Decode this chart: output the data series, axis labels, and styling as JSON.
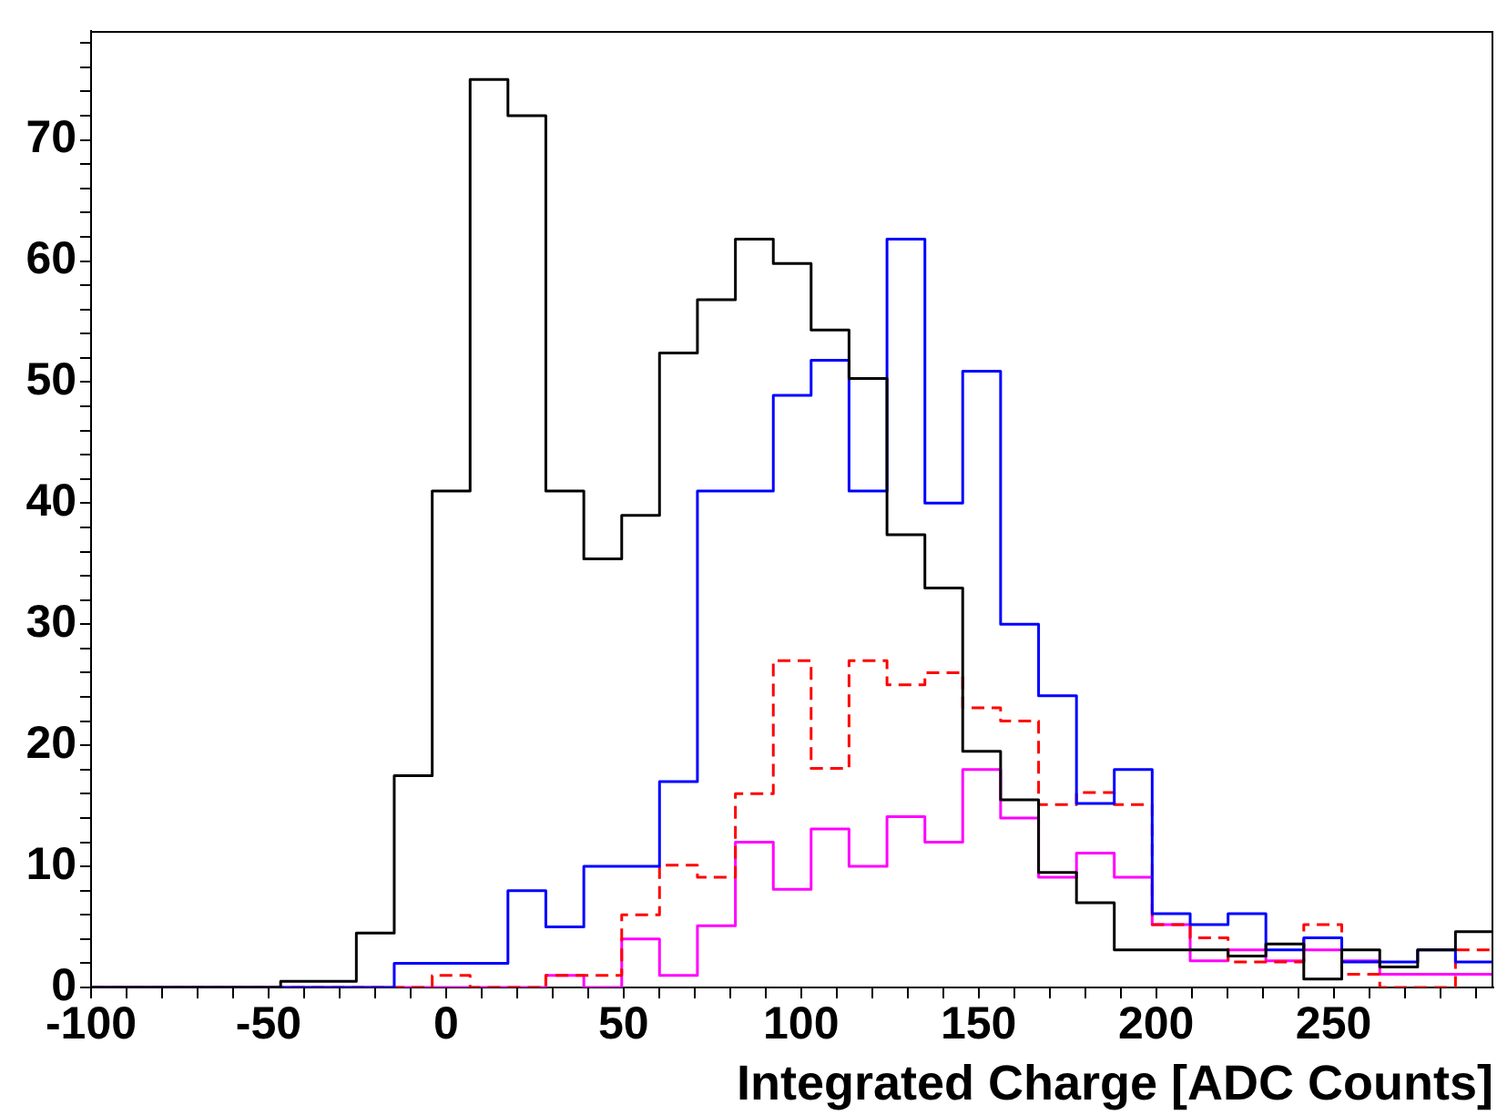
{
  "chart_data": {
    "type": "histogram",
    "xlabel": "Integrated Charge [ADC Counts]",
    "bins": [
      -100,
      -89.3,
      -78.6,
      -68.0,
      -57.3,
      -46.6,
      -35.9,
      -25.3,
      -14.6,
      -3.9,
      6.8,
      17.4,
      28.1,
      38.8,
      49.5,
      60.1,
      70.8,
      81.5,
      92.2,
      102.8,
      113.5,
      124.2,
      134.9,
      145.5,
      156.2,
      166.9,
      177.6,
      188.2,
      198.9,
      209.6,
      220.3,
      230.9,
      241.6,
      252.3,
      263.0,
      273.7,
      284.3,
      295
    ],
    "series": [
      {
        "color": "#000000",
        "values": [
          0,
          0,
          0,
          0,
          0,
          0.5,
          0.5,
          4.5,
          17.5,
          41,
          75,
          72,
          41,
          35.4,
          39,
          52.4,
          56.8,
          61.8,
          59.8,
          54.3,
          50.3,
          37.4,
          33,
          19.5,
          15.5,
          9.5,
          7,
          3.1,
          3.1,
          3.1,
          2.6,
          3.6,
          0.7,
          3.1,
          1.7,
          3.1,
          4.6
        ]
      },
      {
        "color": "#0000ff",
        "values": [
          0,
          0,
          0,
          0,
          0,
          0,
          0,
          0,
          2,
          2,
          2,
          8,
          5,
          10,
          10,
          17,
          41,
          41,
          48.9,
          51.8,
          41,
          61.8,
          40,
          50.9,
          30,
          24.1,
          15.2,
          18,
          6.1,
          5.2,
          6.1,
          3.1,
          4.1,
          2.1,
          2.1,
          3.1,
          2.1
        ]
      },
      {
        "color": "#ff0000",
        "line_style": "dashed",
        "values": [
          0,
          0,
          0,
          0,
          0,
          0,
          0,
          0,
          0,
          1,
          0,
          0,
          1,
          1,
          6,
          10.1,
          9.1,
          16,
          27,
          18.1,
          27,
          25,
          26,
          23.1,
          22,
          15.1,
          16.1,
          15.1,
          5.2,
          4.1,
          2.1,
          2.1,
          5.2,
          1.1,
          0,
          0,
          3.1
        ]
      },
      {
        "color": "#ff00ff",
        "values": [
          0,
          0,
          0,
          0,
          0,
          0,
          0,
          0,
          0,
          0,
          0,
          0,
          1,
          0,
          4,
          1,
          5.1,
          12,
          8.1,
          13.1,
          10,
          14.1,
          12,
          18,
          14,
          9.1,
          11.1,
          9.1,
          5.2,
          2.2,
          3.1,
          2.2,
          3.1,
          2.2,
          1.1,
          1.1,
          1.1
        ]
      }
    ],
    "xlim": [
      -100,
      295
    ],
    "xticks": [
      -100,
      {
        "value": -90,
        "label": null
      },
      {
        "value": -80,
        "label": null
      },
      {
        "value": -70,
        "label": null
      },
      {
        "value": -60,
        "label": null
      },
      -50,
      {
        "value": -40,
        "label": null
      },
      {
        "value": -30,
        "label": null
      },
      {
        "value": -20,
        "label": null
      },
      {
        "value": -10,
        "label": null
      },
      0,
      {
        "value": 10,
        "label": null
      },
      {
        "value": 20,
        "label": null
      },
      {
        "value": 30,
        "label": null
      },
      {
        "value": 40,
        "label": null
      },
      50,
      {
        "value": 60,
        "label": null
      },
      {
        "value": 70,
        "label": null
      },
      {
        "value": 80,
        "label": null
      },
      {
        "value": 90,
        "label": null
      },
      100,
      {
        "value": 110,
        "label": null
      },
      {
        "value": 120,
        "label": null
      },
      {
        "value": 130,
        "label": null
      },
      {
        "value": 140,
        "label": null
      },
      150,
      {
        "value": 160,
        "label": null
      },
      {
        "value": 170,
        "label": null
      },
      {
        "value": 180,
        "label": null
      },
      {
        "value": 190,
        "label": null
      },
      200,
      {
        "value": 210,
        "label": null
      },
      {
        "value": 220,
        "label": null
      },
      {
        "value": 230,
        "label": null
      },
      {
        "value": 240,
        "label": null
      },
      250,
      {
        "value": 260,
        "label": null
      },
      {
        "value": 270,
        "label": null
      },
      {
        "value": 280,
        "label": null
      },
      {
        "value": 290,
        "label": null
      }
    ],
    "ylim": [
      0,
      79
    ],
    "yticks": [
      0,
      {
        "value": 2,
        "label": null
      },
      {
        "value": 4,
        "label": null
      },
      {
        "value": 6,
        "label": null
      },
      {
        "value": 8,
        "label": null
      },
      10,
      {
        "value": 12,
        "label": null
      },
      {
        "value": 14,
        "label": null
      },
      {
        "value": 16,
        "label": null
      },
      {
        "value": 18,
        "label": null
      },
      20,
      {
        "value": 22,
        "label": null
      },
      {
        "value": 24,
        "label": null
      },
      {
        "value": 26,
        "label": null
      },
      {
        "value": 28,
        "label": null
      },
      30,
      {
        "value": 32,
        "label": null
      },
      {
        "value": 34,
        "label": null
      },
      {
        "value": 36,
        "label": null
      },
      {
        "value": 38,
        "label": null
      },
      40,
      {
        "value": 42,
        "label": null
      },
      {
        "value": 44,
        "label": null
      },
      {
        "value": 46,
        "label": null
      },
      {
        "value": 48,
        "label": null
      },
      50,
      {
        "value": 52,
        "label": null
      },
      {
        "value": 54,
        "label": null
      },
      {
        "value": 56,
        "label": null
      },
      {
        "value": 58,
        "label": null
      },
      60,
      {
        "value": 62,
        "label": null
      },
      {
        "value": 64,
        "label": null
      },
      {
        "value": 66,
        "label": null
      },
      {
        "value": 68,
        "label": null
      },
      70,
      {
        "value": 72,
        "label": null
      },
      {
        "value": 74,
        "label": null
      },
      {
        "value": 76,
        "label": null
      },
      {
        "value": 78,
        "label": null
      }
    ],
    "grid": false,
    "legend": false
  }
}
